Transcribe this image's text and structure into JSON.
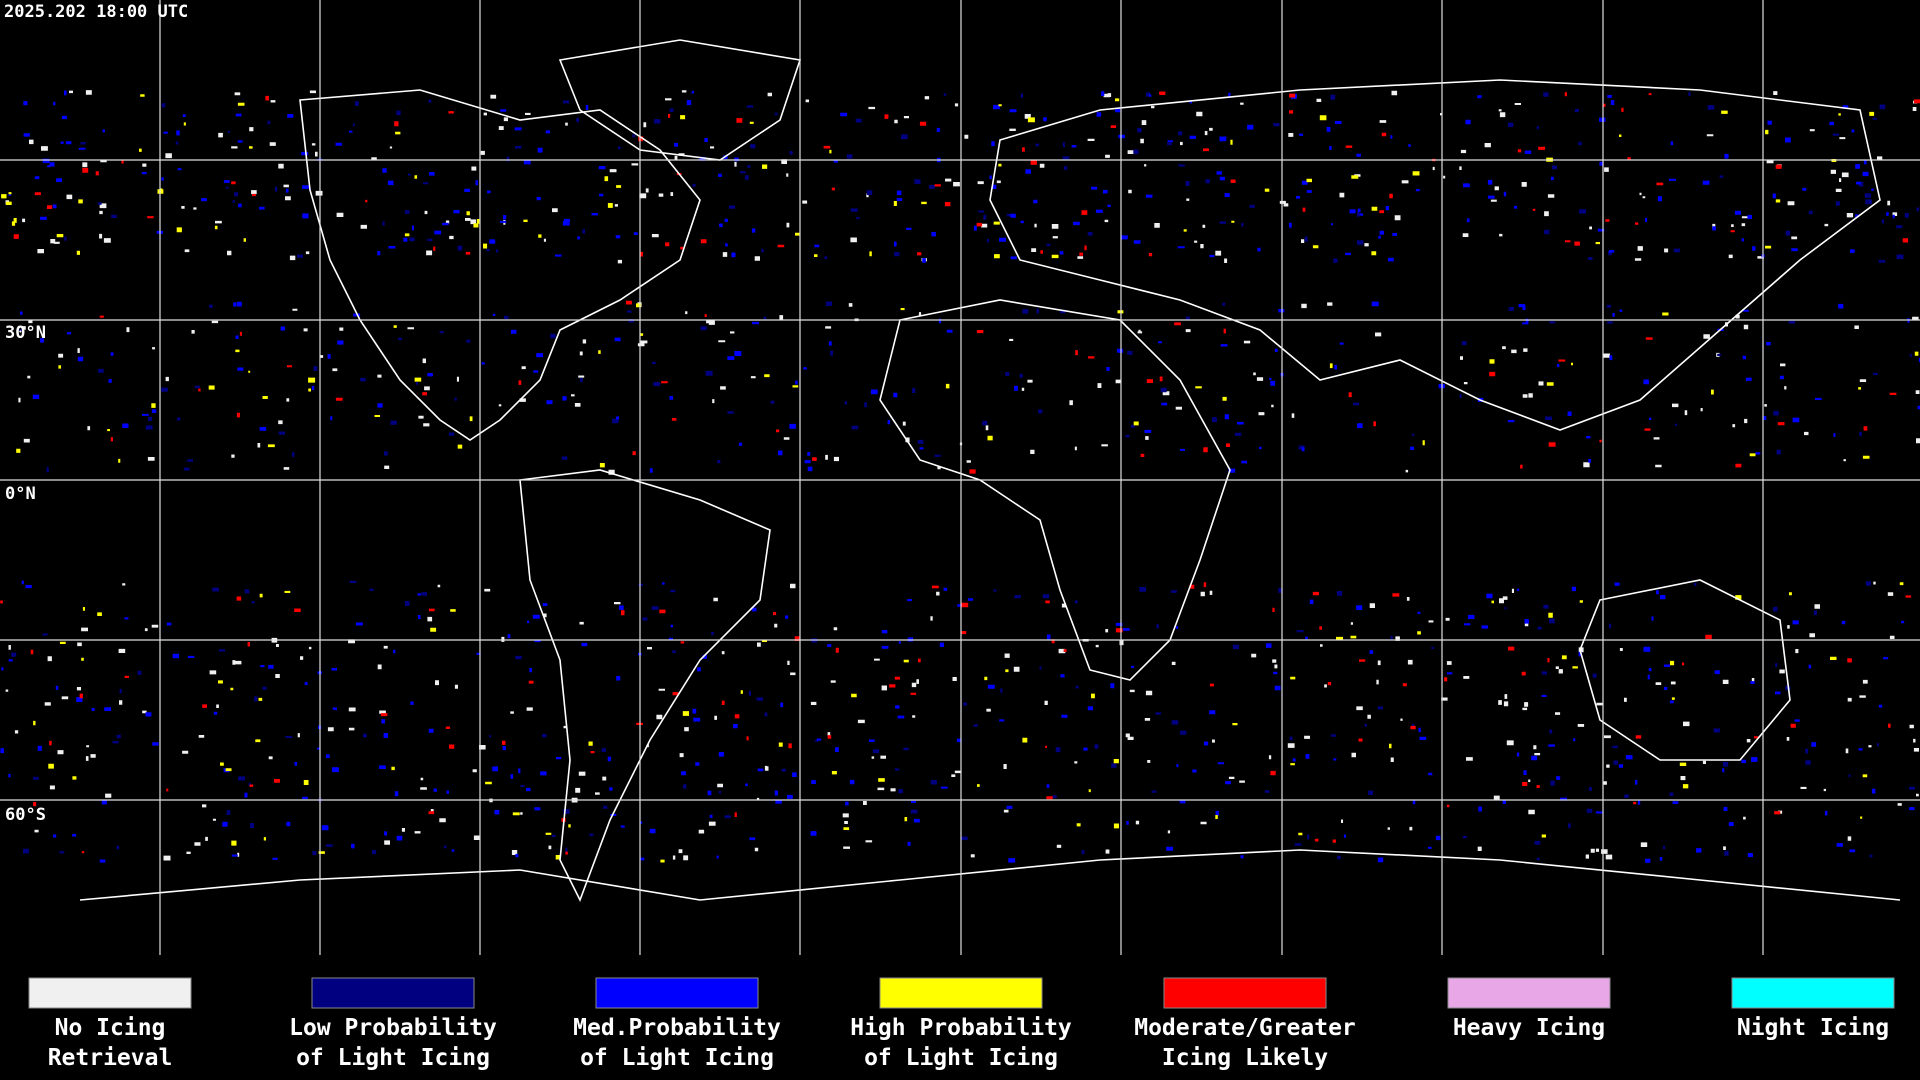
{
  "timestamp": "2025.202 18:00 UTC",
  "latitude_labels": [
    "30°N",
    "0°N",
    "60°S"
  ],
  "legend": [
    {
      "label_lines": [
        "No Icing",
        "Retrieval"
      ],
      "color": "#f0f0f0"
    },
    {
      "label_lines": [
        "Low Probability",
        "of Light Icing"
      ],
      "color": "#000080"
    },
    {
      "label_lines": [
        "Med.Probability",
        "of Light Icing"
      ],
      "color": "#0000ff"
    },
    {
      "label_lines": [
        "High Probability",
        "of Light Icing"
      ],
      "color": "#ffff00"
    },
    {
      "label_lines": [
        "Moderate/Greater",
        "Icing Likely"
      ],
      "color": "#ff0000"
    },
    {
      "label_lines": [
        "Heavy Icing"
      ],
      "color": "#e8a8e8"
    },
    {
      "label_lines": [
        "Night Icing"
      ],
      "color": "#00ffff"
    }
  ]
}
